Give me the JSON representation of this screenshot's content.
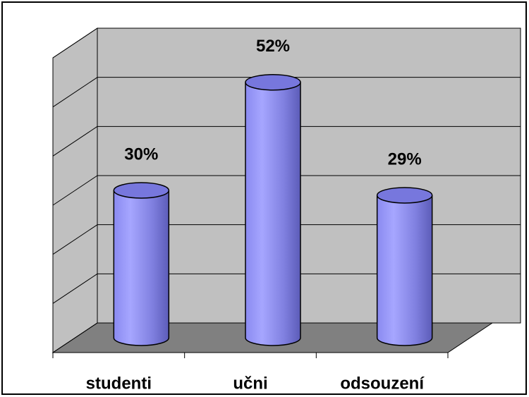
{
  "chart_data": {
    "type": "bar",
    "categories": [
      "studenti",
      "učni",
      "odsouzení"
    ],
    "values": [
      30,
      52,
      29
    ],
    "value_labels": [
      "30%",
      "52%",
      "29%"
    ],
    "color": "#9999ff",
    "ylim": [
      0,
      60
    ],
    "yticks": [
      0,
      10,
      20,
      30,
      40,
      50,
      60
    ],
    "grid": true
  }
}
